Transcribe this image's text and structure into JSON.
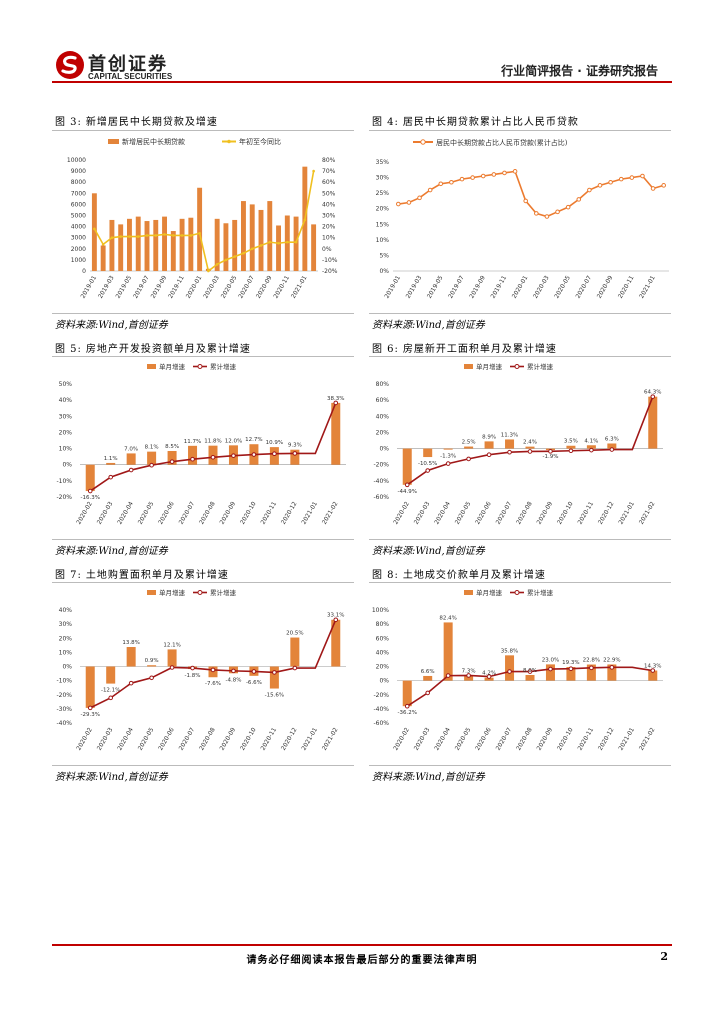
{
  "header": {
    "company_cn": "首创证券",
    "company_en": "CAPITAL SECURITIES",
    "report_type": "行业简评报告 · 证券研究报告"
  },
  "footer": {
    "disclaimer": "请务必仔细阅读本报告最后部分的重要法律声明",
    "page_number": "2"
  },
  "colors": {
    "accent": "#c00000",
    "bar_orange": "#e3843a",
    "line_yellow": "#f0c020",
    "line_orange": "#ec7b2f",
    "line_darkred": "#a01818"
  },
  "figures": [
    {
      "num": "图 3:",
      "title": "新增居民中长期贷款及增速",
      "source": "资料来源:Wind,首创证券"
    },
    {
      "num": "图 4:",
      "title": "居民中长期贷款累计占比人民币贷款",
      "source": "资料来源:Wind,首创证券"
    },
    {
      "num": "图 5:",
      "title": "房地产开发投资额单月及累计增速",
      "source": "资料来源:Wind,首创证券"
    },
    {
      "num": "图 6:",
      "title": "房屋新开工面积单月及累计增速",
      "source": "资料来源:Wind,首创证券"
    },
    {
      "num": "图 7:",
      "title": "土地购置面积单月及累计增速",
      "source": "资料来源:Wind,首创证券"
    },
    {
      "num": "图 8:",
      "title": "土地成交价款单月及累计增速",
      "source": "资料来源:Wind,首创证券"
    }
  ],
  "chart_data": [
    {
      "type": "bar+line",
      "title": "新增居民中长期贷款及增速",
      "legend": [
        "新增居民中长期贷款",
        "年初至今同比"
      ],
      "categories": [
        "2019-01",
        "2019-02",
        "2019-03",
        "2019-04",
        "2019-05",
        "2019-06",
        "2019-07",
        "2019-08",
        "2019-09",
        "2019-10",
        "2019-11",
        "2019-12",
        "2020-01",
        "2020-02",
        "2020-03",
        "2020-04",
        "2020-05",
        "2020-06",
        "2020-07",
        "2020-08",
        "2020-09",
        "2020-10",
        "2020-11",
        "2020-12",
        "2021-01",
        "2021-02"
      ],
      "xticks": [
        "2019-01",
        "2019-03",
        "2019-05",
        "2019-07",
        "2019-09",
        "2019-11",
        "2020-01",
        "2020-03",
        "2020-05",
        "2020-07",
        "2020-09",
        "2020-11",
        "2021-01"
      ],
      "bars": [
        7000,
        2300,
        4600,
        4200,
        4700,
        4900,
        4500,
        4600,
        4900,
        3600,
        4700,
        4800,
        7500,
        200,
        4700,
        4300,
        4600,
        6300,
        6000,
        5500,
        6300,
        4100,
        5000,
        4900,
        9400,
        4200
      ],
      "line": [
        18,
        4,
        10,
        11,
        11,
        11,
        12,
        12,
        13,
        12,
        12,
        12,
        14,
        -20,
        -14,
        -10,
        -7,
        -4,
        0,
        3,
        6,
        5,
        6,
        6,
        26,
        70
      ],
      "ylim_left": [
        0,
        10000
      ],
      "yticks_left": [
        "0",
        "1000",
        "2000",
        "3000",
        "4000",
        "5000",
        "6000",
        "7000",
        "8000",
        "9000",
        "10000"
      ],
      "ylim_right": [
        -20,
        80
      ],
      "yticks_right": [
        "-20%",
        "-10%",
        "0%",
        "10%",
        "20%",
        "30%",
        "40%",
        "50%",
        "60%",
        "70%",
        "80%"
      ]
    },
    {
      "type": "line",
      "title": "居民中长期贷款累计占比人民币贷款",
      "legend": [
        "居民中长期贷款占比人民币贷款(累计占比)"
      ],
      "categories": [
        "2019-01",
        "2019-02",
        "2019-03",
        "2019-04",
        "2019-05",
        "2019-06",
        "2019-07",
        "2019-08",
        "2019-09",
        "2019-10",
        "2019-11",
        "2019-12",
        "2020-01",
        "2020-02",
        "2020-03",
        "2020-04",
        "2020-05",
        "2020-06",
        "2020-07",
        "2020-08",
        "2020-09",
        "2020-10",
        "2020-11",
        "2020-12",
        "2021-01",
        "2021-02"
      ],
      "xticks": [
        "2019-01",
        "2019-03",
        "2019-05",
        "2019-07",
        "2019-09",
        "2019-11",
        "2020-01",
        "2020-03",
        "2020-05",
        "2020-07",
        "2020-09",
        "2020-11",
        "2021-01"
      ],
      "line": [
        21.5,
        22,
        23.5,
        26,
        28,
        28.5,
        29.5,
        30,
        30.5,
        31,
        31.5,
        32,
        22.5,
        18.5,
        17.5,
        19,
        20.5,
        23,
        26,
        27.5,
        28.5,
        29.5,
        30,
        30.5,
        26.5,
        27.5
      ],
      "ylim": [
        0,
        35
      ],
      "yticks": [
        "0%",
        "5%",
        "10%",
        "15%",
        "20%",
        "25%",
        "30%",
        "35%"
      ]
    },
    {
      "type": "bar+line",
      "title": "房地产开发投资额单月及累计增速",
      "legend": [
        "单月增速",
        "累计增速"
      ],
      "categories": [
        "2020-02",
        "2020-03",
        "2020-04",
        "2020-05",
        "2020-06",
        "2020-07",
        "2020-08",
        "2020-09",
        "2020-10",
        "2020-11",
        "2020-12",
        "2021-01",
        "2021-02"
      ],
      "bars": [
        -16.3,
        1.1,
        7.0,
        8.1,
        8.5,
        11.7,
        11.8,
        12.0,
        12.7,
        10.9,
        9.3,
        null,
        38.3
      ],
      "line": [
        -16.3,
        -7.7,
        -3.3,
        -0.3,
        1.9,
        3.4,
        4.6,
        5.6,
        6.3,
        6.8,
        7.0,
        null,
        38.3
      ],
      "labels": [
        "-16.3%",
        "1.1%",
        "7.0%",
        "8.1%",
        "8.5%",
        "11.7%",
        "11.8%",
        "12.0%",
        "12.7%",
        "10.9%",
        "9.3%",
        "",
        "38.3%"
      ],
      "ylim": [
        -20,
        50
      ],
      "yticks": [
        "-20%",
        "-10%",
        "0%",
        "10%",
        "20%",
        "30%",
        "40%",
        "50%"
      ]
    },
    {
      "type": "bar+line",
      "title": "房屋新开工面积单月及累计增速",
      "legend": [
        "单月增速",
        "累计增速"
      ],
      "categories": [
        "2020-02",
        "2020-03",
        "2020-04",
        "2020-05",
        "2020-06",
        "2020-07",
        "2020-08",
        "2020-09",
        "2020-10",
        "2020-11",
        "2020-12",
        "2021-01",
        "2021-02"
      ],
      "bars": [
        -44.9,
        -10.5,
        -1.3,
        2.5,
        8.9,
        11.3,
        2.4,
        -1.9,
        3.5,
        4.1,
        6.3,
        null,
        64.3
      ],
      "line": [
        -44.9,
        -27.2,
        -18.6,
        -12.8,
        -7.6,
        -4.5,
        -3.6,
        -3.4,
        -2.7,
        -2.0,
        -1.2,
        null,
        64.3
      ],
      "labels": [
        "-44.9%",
        "-10.5%",
        "-1.3%",
        "2.5%",
        "8.9%",
        "11.3%",
        "2.4%",
        "-1.9%",
        "3.5%",
        "4.1%",
        "6.3%",
        "",
        "64.3%"
      ],
      "ylim": [
        -60,
        80
      ],
      "yticks": [
        "-60%",
        "-40%",
        "-20%",
        "0%",
        "20%",
        "40%",
        "60%",
        "80%"
      ]
    },
    {
      "type": "bar+line",
      "title": "土地购置面积单月及累计增速",
      "legend": [
        "单月增速",
        "累计增速"
      ],
      "categories": [
        "2020-02",
        "2020-03",
        "2020-04",
        "2020-05",
        "2020-06",
        "2020-07",
        "2020-08",
        "2020-09",
        "2020-10",
        "2020-11",
        "2020-12",
        "2021-01",
        "2021-02"
      ],
      "bars": [
        -29.3,
        -12.1,
        13.8,
        0.9,
        12.1,
        -1.8,
        -7.6,
        -4.8,
        -6.6,
        -15.6,
        20.5,
        null,
        33.1
      ],
      "line": [
        -29.3,
        -22.2,
        -11.8,
        -8.0,
        -0.7,
        -1.1,
        -2.4,
        -3.1,
        -3.5,
        -4.2,
        -1.1,
        null,
        33.1
      ],
      "labels": [
        "-29.3%",
        "-12.1%",
        "13.8%",
        "0.9%",
        "12.1%",
        "-1.8%",
        "-7.6%",
        "-4.8%",
        "-6.6%",
        "-15.6%",
        "20.5%",
        "",
        "33.1%"
      ],
      "ylim": [
        -40,
        40
      ],
      "yticks": [
        "-40%",
        "-30%",
        "-20%",
        "-10%",
        "0%",
        "10%",
        "20%",
        "30%",
        "40%"
      ]
    },
    {
      "type": "bar+line",
      "title": "土地成交价款单月及累计增速",
      "legend": [
        "单月增速",
        "累计增速"
      ],
      "categories": [
        "2020-02",
        "2020-03",
        "2020-04",
        "2020-05",
        "2020-06",
        "2020-07",
        "2020-08",
        "2020-09",
        "2020-10",
        "2020-11",
        "2020-12",
        "2021-01",
        "2021-02"
      ],
      "bars": [
        -36.2,
        6.6,
        82.4,
        7.3,
        4.2,
        35.8,
        8.0,
        23.0,
        19.3,
        22.8,
        22.9,
        null,
        14.3
      ],
      "line": [
        -36.2,
        -17.4,
        7.1,
        7.3,
        5.7,
        12.9,
        12.8,
        16.4,
        16.9,
        18.1,
        18.8,
        null,
        14.3
      ],
      "labels": [
        "-36.2%",
        "6.6%",
        "82.4%",
        "7.3%",
        "4.2%",
        "35.8%",
        "8.0%",
        "23.0%",
        "19.3%",
        "22.8%",
        "22.9%",
        "",
        "14.3%"
      ],
      "ylim": [
        -60,
        100
      ],
      "yticks": [
        "-60%",
        "-40%",
        "-20%",
        "0%",
        "20%",
        "40%",
        "60%",
        "80%",
        "100%"
      ]
    }
  ]
}
